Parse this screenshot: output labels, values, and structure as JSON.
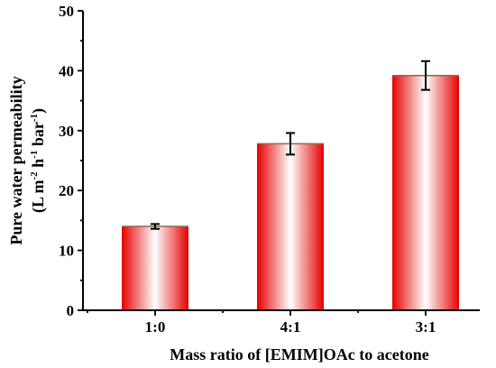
{
  "chart_data": {
    "type": "bar",
    "categories": [
      "1:0",
      "4:1",
      "3:1"
    ],
    "values": [
      14,
      27.8,
      39.2
    ],
    "errors": [
      0.4,
      1.8,
      2.4
    ],
    "xlabel": "Mass ratio of [EMIM]OAc to acetone",
    "ylabel_line1": "Pure water permeability",
    "ylabel_line2_parts": [
      "(L m",
      "-2",
      " h",
      "-1",
      " bar",
      "-1",
      ")"
    ],
    "ylim": [
      0,
      50
    ],
    "yticks": [
      "0",
      "10",
      "20",
      "30",
      "40",
      "50"
    ],
    "grid": false,
    "legend": "none",
    "bar_gradient": {
      "edge_color": "#e60000",
      "center_color": "#ffffff"
    }
  }
}
